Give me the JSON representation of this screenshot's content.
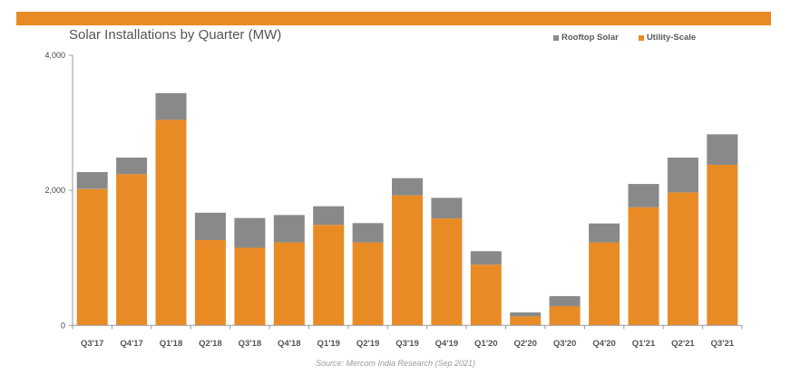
{
  "chart_data": {
    "type": "bar",
    "stacked": true,
    "title": "Solar Installations by Quarter (MW)",
    "xlabel": "",
    "ylabel": "",
    "ylim": [
      0,
      4000
    ],
    "yticks": [
      0,
      2000,
      4000
    ],
    "ytick_labels": [
      "0",
      "2,000",
      "4,000"
    ],
    "grid": false,
    "legend_position": "top-right",
    "categories": [
      "Q3'17",
      "Q4'17",
      "Q1'18",
      "Q2'18",
      "Q3'18",
      "Q4'18",
      "Q1'19",
      "Q2'19",
      "Q3'19",
      "Q4'19",
      "Q1'20",
      "Q2'20",
      "Q3'20",
      "Q4'20",
      "Q1'21",
      "Q2'21",
      "Q3'21"
    ],
    "series": [
      {
        "name": "Utility-Scale",
        "color": "#E98B25",
        "values": [
          2020,
          2240,
          3045,
          1265,
          1150,
          1230,
          1490,
          1230,
          1925,
          1585,
          900,
          135,
          285,
          1230,
          1750,
          1970,
          2380
        ]
      },
      {
        "name": "Rooftop Solar",
        "color": "#898989",
        "values": [
          250,
          245,
          395,
          405,
          440,
          405,
          275,
          285,
          255,
          305,
          200,
          60,
          150,
          280,
          345,
          515,
          450
        ]
      }
    ],
    "legend": [
      {
        "label": "Rooftop Solar",
        "color": "#898989"
      },
      {
        "label": "Utility-Scale",
        "color": "#E98B25"
      }
    ],
    "source": "Source: Mercom India Research (Sep 2021)"
  }
}
